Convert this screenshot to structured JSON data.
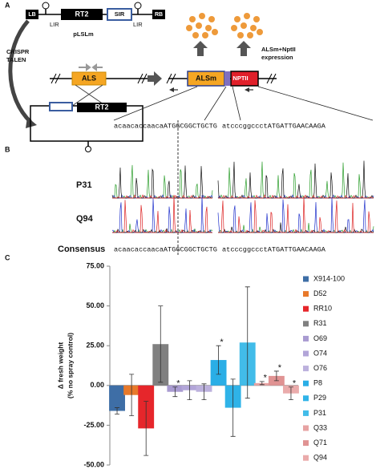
{
  "panel_labels": [
    "A",
    "B",
    "C"
  ],
  "panel_a": {
    "lb": "LB",
    "rb": "RB",
    "rt2_top": "RT2",
    "sir": "SIR",
    "lir_left": "LIR",
    "lir_right": "LIR",
    "plasmid": "pLSLm",
    "method": [
      "CRISPR",
      "TALEN"
    ],
    "als": "ALS",
    "rt2_bottom": "RT2",
    "alsm": "ALSm",
    "nptii": "NPTII",
    "expression": [
      "ALSm+NptII",
      "expression"
    ]
  },
  "panel_b": {
    "reference": [
      "acaacaccaacaATGGCGGCTGCTG",
      "atcccggccctATGATTGAACAAGA"
    ],
    "rows": [
      "P31",
      "Q94"
    ],
    "consensus_label": "Consensus",
    "consensus": [
      "acaacaccaacaATGGCGGCTGCTG",
      "atcccggccctATGATTGAACAAGA"
    ]
  },
  "chart_data": {
    "type": "bar",
    "y_label": [
      "Δ fresh weight",
      "(% no spray control)"
    ],
    "categories": [
      "X914-100",
      "D52",
      "RR10",
      "R31",
      "O69",
      "O74",
      "O76",
      "P8",
      "P29",
      "P31",
      "Q33",
      "Q71",
      "Q94"
    ],
    "values": [
      -16,
      -6,
      -27,
      26,
      -4,
      -3,
      -4,
      16,
      -14,
      27,
      1.5,
      6,
      -5
    ],
    "errors": [
      2,
      13,
      17,
      24,
      3,
      6,
      5,
      9,
      18,
      35,
      1,
      3,
      4
    ],
    "significance": [
      null,
      null,
      null,
      null,
      "*",
      null,
      null,
      "*",
      null,
      null,
      "*",
      "*",
      "*"
    ],
    "colors": [
      "#3e6ea6",
      "#e8792a",
      "#e6262b",
      "#808080",
      "#a99bd1",
      "#b2a5d8",
      "#bcb1dd",
      "#2aaee6",
      "#2fb3e8",
      "#42bce9",
      "#e7a3a3",
      "#e09393",
      "#eaabab"
    ],
    "ylim": [
      -50,
      75
    ],
    "yticks": [
      {
        "value": -50,
        "label": "-50.00"
      },
      {
        "value": -25,
        "label": "-25.00"
      },
      {
        "value": 0,
        "label": "0.00"
      },
      {
        "value": 25,
        "label": "25.00"
      },
      {
        "value": 50,
        "label": "50.00"
      },
      {
        "value": 75,
        "label": "75.00"
      }
    ]
  }
}
